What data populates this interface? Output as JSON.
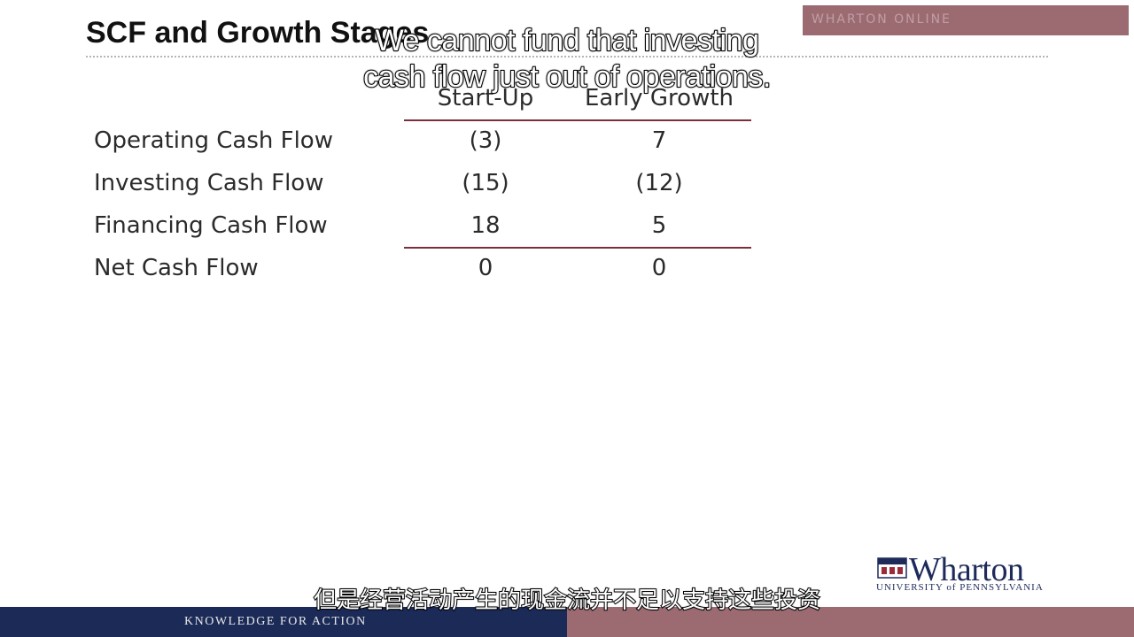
{
  "slide": {
    "title": "SCF and Growth Stages",
    "top_band_text": "WHARTON ONLINE",
    "accent_color": "#7b2f3c",
    "band_color": "#9c6b72",
    "navy_color": "#1b2a57"
  },
  "table": {
    "columns": [
      "Start-Up",
      "Early Growth"
    ],
    "rows": [
      {
        "label": "Operating Cash Flow",
        "values": [
          "(3)",
          "7"
        ]
      },
      {
        "label": "Investing Cash Flow",
        "values": [
          "(15)",
          "(12)"
        ]
      },
      {
        "label": "Financing Cash Flow",
        "values": [
          "18",
          "5"
        ]
      },
      {
        "label": "Net Cash Flow",
        "values": [
          "0",
          "0"
        ]
      }
    ]
  },
  "captions": {
    "english_line1": "We cannot fund that investing",
    "english_line2": "cash flow just out of operations.",
    "chinese": "但是经营活动产生的现金流并不足以支持这些投资"
  },
  "logo": {
    "name": "Wharton",
    "subtitle": "UNIVERSITY of PENNSYLVANIA",
    "icon": "penn-shield-icon"
  },
  "footer": {
    "tagline": "KNOWLEDGE FOR ACTION"
  }
}
